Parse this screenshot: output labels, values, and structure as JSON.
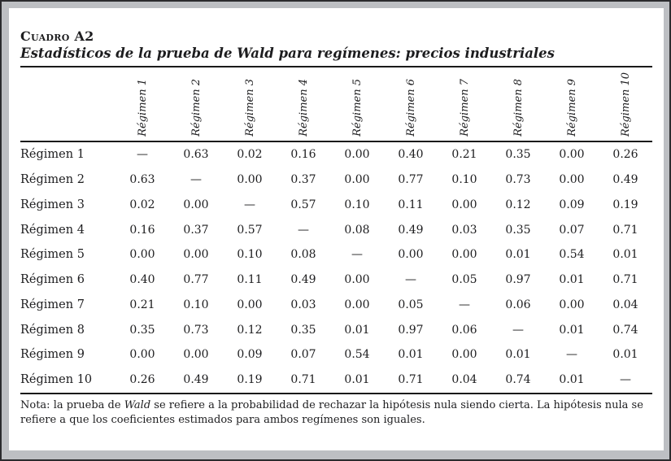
{
  "document": {
    "table_number": "Cuadro A2",
    "table_title": "Estadísticos de la prueba de Wald para regímenes: precios industriales"
  },
  "table": {
    "column_headers": [
      "Régimen 1",
      "Régimen 2",
      "Régimen 3",
      "Régimen 4",
      "Régimen 5",
      "Régimen 6",
      "Régimen 7",
      "Régimen 8",
      "Régimen 9",
      "Régimen 10"
    ],
    "rows": [
      {
        "label": "Régimen 1",
        "values": [
          "—",
          "0.63",
          "0.02",
          "0.16",
          "0.00",
          "0.40",
          "0.21",
          "0.35",
          "0.00",
          "0.26"
        ]
      },
      {
        "label": "Régimen 2",
        "values": [
          "0.63",
          "—",
          "0.00",
          "0.37",
          "0.00",
          "0.77",
          "0.10",
          "0.73",
          "0.00",
          "0.49"
        ]
      },
      {
        "label": "Régimen 3",
        "values": [
          "0.02",
          "0.00",
          "—",
          "0.57",
          "0.10",
          "0.11",
          "0.00",
          "0.12",
          "0.09",
          "0.19"
        ]
      },
      {
        "label": "Régimen 4",
        "values": [
          "0.16",
          "0.37",
          "0.57",
          "—",
          "0.08",
          "0.49",
          "0.03",
          "0.35",
          "0.07",
          "0.71"
        ]
      },
      {
        "label": "Régimen 5",
        "values": [
          "0.00",
          "0.00",
          "0.10",
          "0.08",
          "—",
          "0.00",
          "0.00",
          "0.01",
          "0.54",
          "0.01"
        ]
      },
      {
        "label": "Régimen 6",
        "values": [
          "0.40",
          "0.77",
          "0.11",
          "0.49",
          "0.00",
          "—",
          "0.05",
          "0.97",
          "0.01",
          "0.71"
        ]
      },
      {
        "label": "Régimen 7",
        "values": [
          "0.21",
          "0.10",
          "0.00",
          "0.03",
          "0.00",
          "0.05",
          "—",
          "0.06",
          "0.00",
          "0.04"
        ]
      },
      {
        "label": "Régimen 8",
        "values": [
          "0.35",
          "0.73",
          "0.12",
          "0.35",
          "0.01",
          "0.97",
          "0.06",
          "—",
          "0.01",
          "0.74"
        ]
      },
      {
        "label": "Régimen 9",
        "values": [
          "0.00",
          "0.00",
          "0.09",
          "0.07",
          "0.54",
          "0.01",
          "0.00",
          "0.01",
          "—",
          "0.01"
        ]
      },
      {
        "label": "Régimen 10",
        "values": [
          "0.26",
          "0.49",
          "0.19",
          "0.71",
          "0.01",
          "0.71",
          "0.04",
          "0.74",
          "0.01",
          "—"
        ]
      }
    ]
  },
  "note": {
    "prefix": "Nota: la prueba de ",
    "emphasis": "Wald",
    "suffix": " se refiere a la probabilidad de rechazar la hipótesis nula siendo cierta. La hipótesis nula se refiere a que los coeficientes estimados para ambos regímenes son iguales."
  },
  "colors": {
    "canvas_background": "#bdbfc3",
    "page_background": "#ffffff",
    "text": "#1d1d1f",
    "rule": "#1a1a1a"
  }
}
